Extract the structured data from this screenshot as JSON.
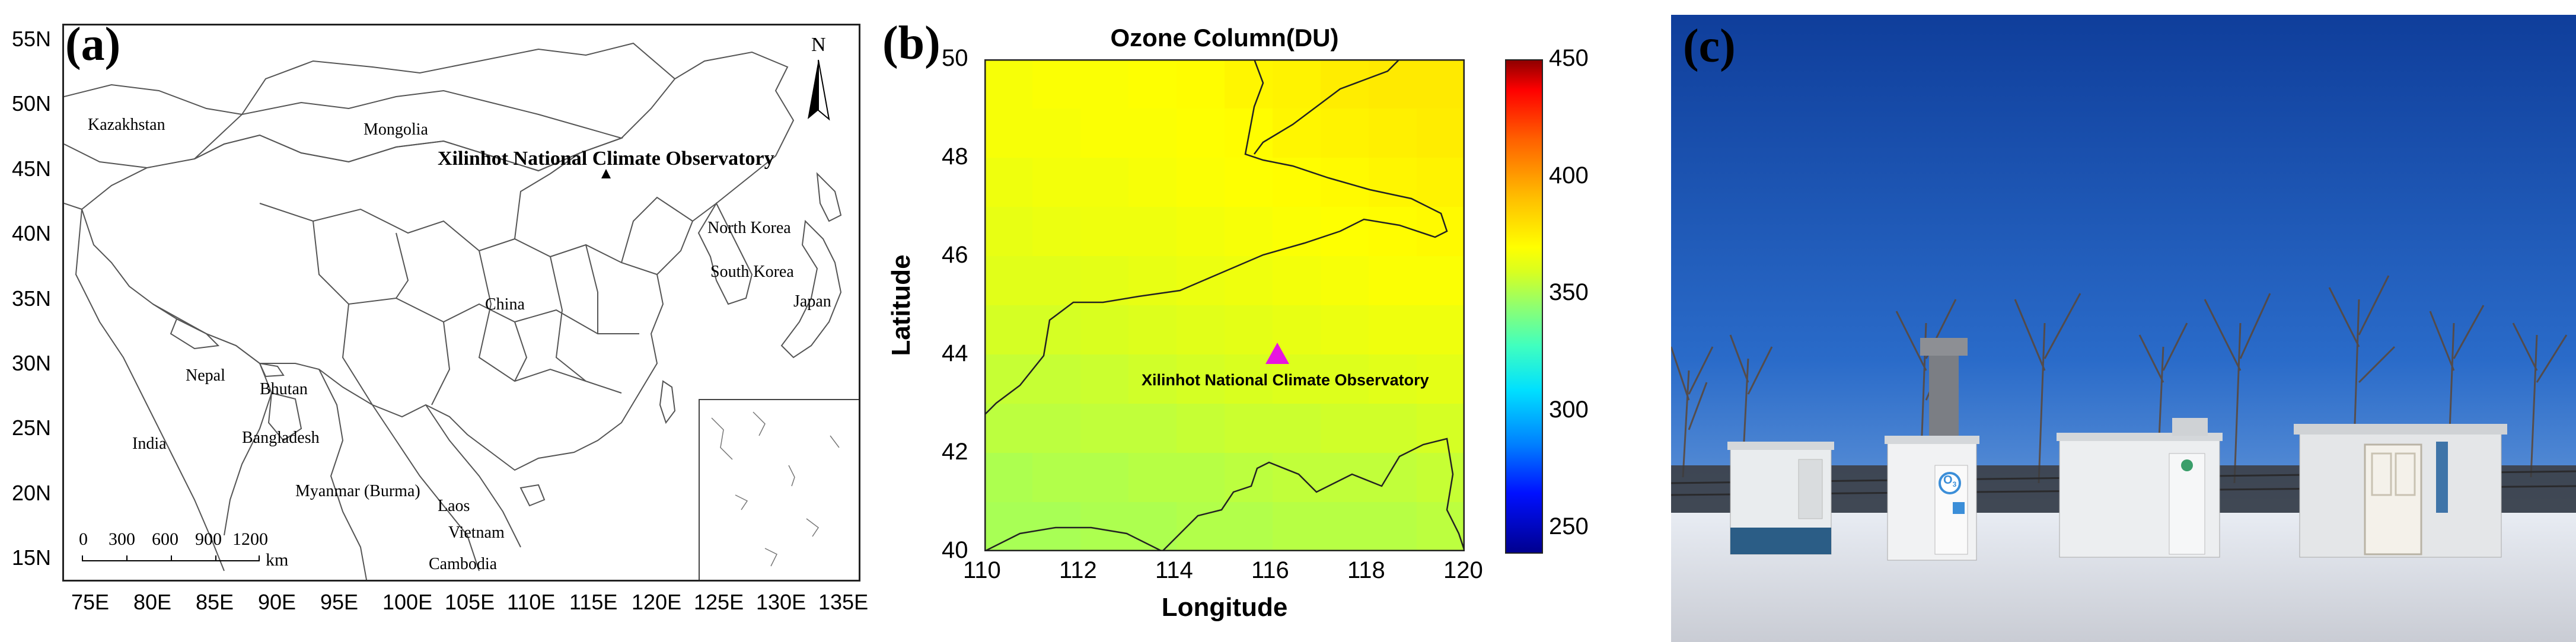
{
  "panel_a": {
    "label": "(a)",
    "north_label": "N",
    "observatory_label": "Xilinhot National Climate Observatory",
    "lat_ticks": [
      "55N",
      "50N",
      "45N",
      "40N",
      "35N",
      "30N",
      "25N",
      "20N",
      "15N"
    ],
    "lon_ticks": [
      "75E",
      "80E",
      "85E",
      "90E",
      "95E",
      "100E",
      "105E",
      "110E",
      "115E",
      "120E",
      "125E",
      "130E",
      "135E"
    ],
    "places": {
      "kazakhstan": "Kazakhstan",
      "mongolia": "Mongolia",
      "north_korea": "North Korea",
      "south_korea": "South Korea",
      "japan": "Japan",
      "china": "China",
      "nepal": "Nepal",
      "bhutan": "Bhutan",
      "india": "India",
      "bangladesh": "Bangladesh",
      "myanmar": "Myanmar (Burma)",
      "laos": "Laos",
      "vietnam": "Vietnam",
      "cambodia": "Cambodia"
    },
    "scale_ticks": [
      "0",
      "300",
      "600",
      "900",
      "1200"
    ],
    "scale_unit": "km"
  },
  "panel_b": {
    "label": "(b)",
    "title": "Ozone Column(DU)",
    "xlabel": "Longitude",
    "ylabel": "Latitude",
    "station_label": "Xilinhot National Climate Observatory",
    "marker_color": "#e815e0",
    "chart_data": {
      "type": "heatmap",
      "title": "Ozone Column(DU)",
      "xlabel": "Longitude",
      "ylabel": "Latitude",
      "xlim": [
        110,
        120
      ],
      "ylim": [
        40,
        50
      ],
      "xticks": [
        "110",
        "112",
        "114",
        "116",
        "118",
        "120"
      ],
      "yticks": [
        "40",
        "42",
        "44",
        "46",
        "48",
        "50"
      ],
      "colorbar": {
        "min": 240,
        "max": 450,
        "ticks": [
          "250",
          "300",
          "350",
          "400",
          "450"
        ]
      },
      "station": {
        "lon": 116.1,
        "lat": 44.0
      },
      "lats": [
        49.5,
        48.5,
        47.5,
        46.5,
        45.5,
        44.5,
        43.5,
        42.5,
        41.5,
        40.5
      ],
      "lons": [
        110.5,
        111.5,
        112.5,
        113.5,
        114.5,
        115.5,
        116.5,
        117.5,
        118.5,
        119.5
      ],
      "values": [
        [
          368,
          369,
          369,
          370,
          371,
          373,
          374,
          376,
          377,
          377
        ],
        [
          368,
          368,
          369,
          369,
          370,
          371,
          373,
          374,
          375,
          376
        ],
        [
          366,
          367,
          367,
          368,
          369,
          370,
          371,
          372,
          373,
          374
        ],
        [
          364,
          365,
          366,
          366,
          367,
          368,
          369,
          370,
          371,
          372
        ],
        [
          362,
          362,
          363,
          364,
          365,
          366,
          367,
          368,
          369,
          369
        ],
        [
          359,
          359,
          360,
          361,
          362,
          363,
          364,
          365,
          366,
          366
        ],
        [
          356,
          356,
          357,
          358,
          359,
          360,
          361,
          361,
          362,
          363
        ],
        [
          354,
          354,
          355,
          355,
          356,
          357,
          357,
          358,
          358,
          359
        ],
        [
          351,
          352,
          352,
          353,
          353,
          354,
          355,
          355,
          355,
          356
        ],
        [
          350,
          350,
          351,
          351,
          352,
          352,
          353,
          353,
          353,
          354
        ]
      ]
    }
  },
  "panel_c": {
    "label": "(c)",
    "o3_symbol": "O",
    "o3_sub": "3"
  }
}
